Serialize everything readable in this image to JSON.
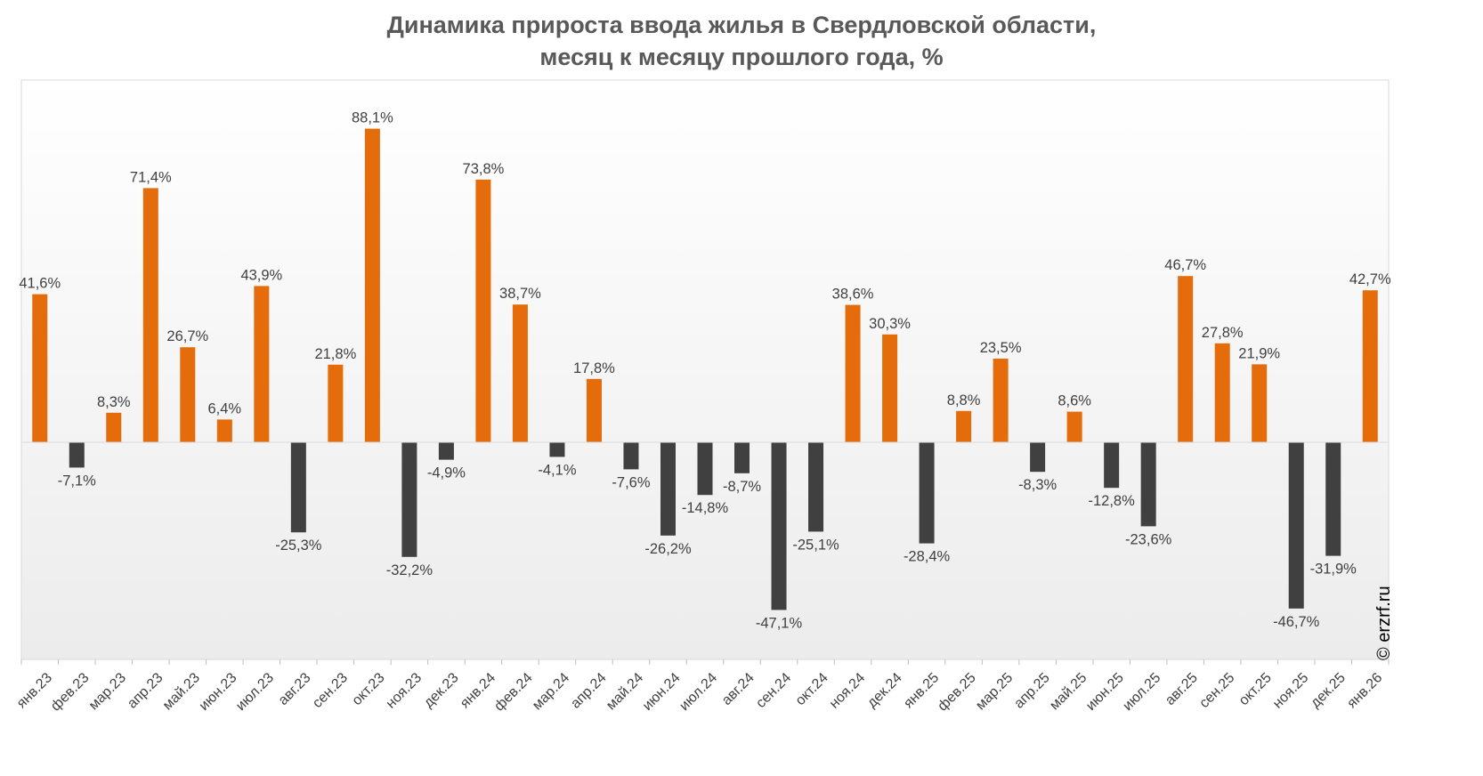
{
  "chart_data": {
    "type": "bar",
    "title": [
      "Динамика прироста ввода жилья в Свердловской области,",
      "месяц к месяцу прошлого года, %"
    ],
    "xlabel": "",
    "ylabel": "",
    "categories": [
      "янв.23",
      "фев.23",
      "мар.23",
      "апр.23",
      "май.23",
      "июн.23",
      "июл.23",
      "авг.23",
      "сен.23",
      "окт.23",
      "ноя.23",
      "дек.23",
      "янв.24",
      "фев.24",
      "мар.24",
      "апр.24",
      "май.24",
      "июн.24",
      "июл.24",
      "авг.24",
      "сен.24",
      "окт.24",
      "ноя.24",
      "дек.24",
      "янв.25",
      "фев.25",
      "мар.25",
      "апр.25",
      "май.25",
      "июн.25",
      "июл.25",
      "авг.25",
      "сен.25",
      "окт.25",
      "ноя.25",
      "дек.25",
      "янв.26"
    ],
    "values": [
      41.6,
      -7.1,
      8.3,
      71.4,
      26.7,
      6.4,
      43.9,
      -25.3,
      21.8,
      88.1,
      -32.2,
      -4.9,
      73.8,
      38.7,
      -4.1,
      17.8,
      -7.6,
      -26.2,
      -14.8,
      -8.7,
      -47.1,
      -25.1,
      38.6,
      30.3,
      -28.4,
      8.8,
      23.5,
      -8.3,
      8.6,
      -12.8,
      -23.6,
      46.7,
      27.8,
      21.9,
      -46.7,
      -31.9,
      42.7
    ],
    "value_labels": [
      "41,6%",
      "-7,1%",
      "8,3%",
      "71,4%",
      "26,7%",
      "6,4%",
      "43,9%",
      "-25,3%",
      "21,8%",
      "88,1%",
      "-32,2%",
      "-4,9%",
      "73,8%",
      "38,7%",
      "-4,1%",
      "17,8%",
      "-7,6%",
      "-26,2%",
      "-14,8%",
      "-8,7%",
      "-47,1%",
      "-25,1%",
      "38,6%",
      "30,3%",
      "-28,4%",
      "8,8%",
      "23,5%",
      "-8,3%",
      "8,6%",
      "-12,8%",
      "-23,6%",
      "46,7%",
      "27,8%",
      "21,9%",
      "-46,7%",
      "-31,9%",
      "42,7%"
    ],
    "ylim": [
      -60,
      100
    ],
    "grid": false,
    "legend": "none",
    "colors": {
      "positive": "#E46C0A",
      "negative": "#404040"
    }
  },
  "watermark": "© erzrf.ru"
}
